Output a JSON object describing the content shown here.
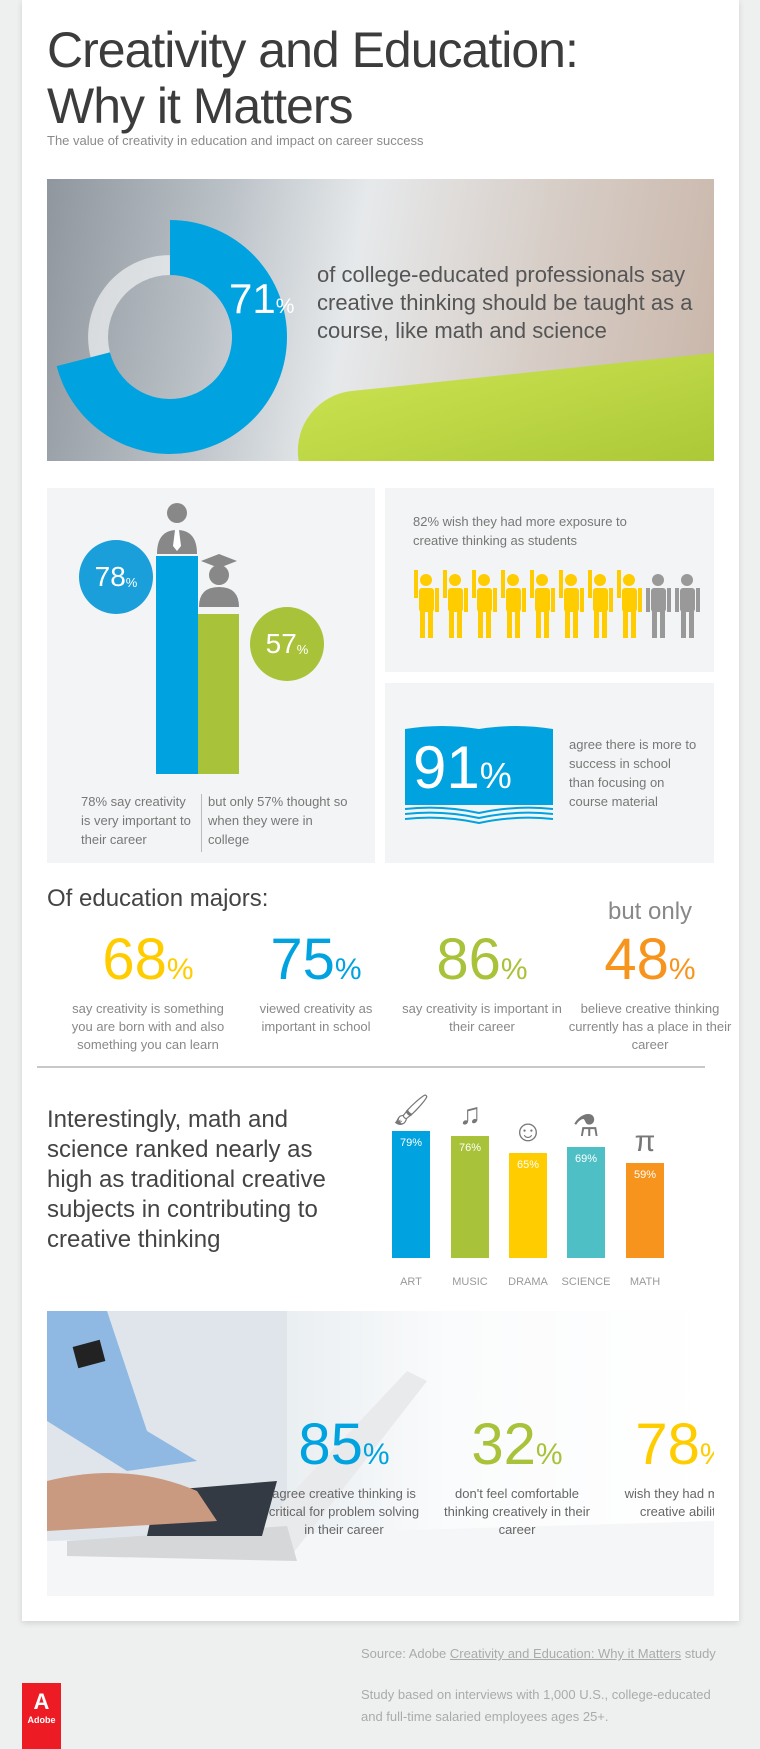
{
  "header": {
    "title_line1": "Creativity and Education:",
    "title_line2": "Why it Matters",
    "subtitle": "The value of creativity in education and impact on career success"
  },
  "hero": {
    "value": 71,
    "pct_number": "71",
    "pct_sign": "%",
    "text": "of college-educated professionals say creative thinking should be taught as a course, like math and science"
  },
  "career_vs_college": {
    "career_pct": 78,
    "college_pct": 57,
    "career_bubble": "78",
    "college_bubble": "57",
    "pct_sign": "%",
    "caption_left": "78% say creativity is very important to their career",
    "caption_right": "but only 57% thought so when they were in college"
  },
  "exposure": {
    "text": "82% wish they had more exposure to creative thinking as students",
    "value": 82
  },
  "success": {
    "pct_number": "91",
    "pct_sign": "%",
    "text": "agree there is more to success in school than focusing on course material"
  },
  "education_majors": {
    "heading": "Of education majors:",
    "but_only": "but only",
    "stats": [
      {
        "num": "68",
        "sign": "%",
        "desc": "say creativity is something you are born with and also something you can learn",
        "color": "#ffcc00"
      },
      {
        "num": "75",
        "sign": "%",
        "desc": "viewed creativity as important in school",
        "color": "#00a3e0"
      },
      {
        "num": "86",
        "sign": "%",
        "desc": "say creativity is important in their career",
        "color": "#a8c23a"
      },
      {
        "num": "48",
        "sign": "%",
        "desc": "believe creative thinking currently has a place in their career",
        "color": "#f7941d"
      }
    ]
  },
  "subjects_text": "Interestingly, math and science ranked nearly as high as traditional creative subjects in contributing to creative thinking",
  "chart_data": {
    "type": "bar",
    "categories": [
      "ART",
      "MUSIC",
      "DRAMA",
      "SCIENCE",
      "MATH"
    ],
    "values": [
      79,
      76,
      65,
      69,
      59
    ],
    "labels": [
      "79%",
      "76%",
      "65%",
      "69%",
      "59%"
    ],
    "icons": [
      "paintbrush-icon",
      "music-note-icon",
      "drama-mask-icon",
      "flask-icon",
      "pi-icon"
    ],
    "colors": [
      "#00a3e0",
      "#a8c23a",
      "#ffcc00",
      "#4fbfc6",
      "#f7941d"
    ],
    "ylim": [
      0,
      100
    ],
    "grid": false
  },
  "career_stats": [
    {
      "num": "85",
      "sign": "%",
      "desc": "agree creative thinking is critical for problem solving in their career",
      "color": "#00a3e0"
    },
    {
      "num": "32",
      "sign": "%",
      "desc": "don't feel comfortable thinking creatively in their career",
      "color": "#a8c23a"
    },
    {
      "num": "78",
      "sign": "%",
      "desc": "wish they had more creative ability",
      "color": "#ffcc00"
    }
  ],
  "footer": {
    "source_prefix": "Source: Adobe ",
    "source_link": "Creativity and Education: Why it Matters",
    "source_suffix": " study",
    "study_note": "Study based on interviews with 1,000 U.S., college-educated and full-time salaried employees ages 25+.",
    "logo": "Adobe"
  }
}
